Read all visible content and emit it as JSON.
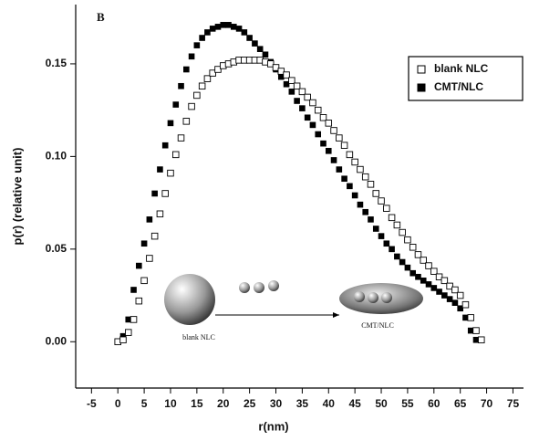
{
  "chart_data": {
    "type": "scatter",
    "panel_label": "B",
    "x_label": "r(nm)",
    "y_label": "p(r) (relative unit)",
    "xlim": [
      -8,
      77
    ],
    "ylim": [
      -0.025,
      0.182
    ],
    "xticks": [
      -5,
      0,
      5,
      10,
      15,
      20,
      25,
      30,
      35,
      40,
      45,
      50,
      55,
      60,
      65,
      70,
      75
    ],
    "yticks": [
      {
        "value": 0,
        "label": "0.00"
      },
      {
        "value": 0.05,
        "label": "0.05"
      },
      {
        "value": 0.1,
        "label": "0.10"
      },
      {
        "value": 0.15,
        "label": "0.15"
      }
    ],
    "legend": "upper right",
    "annotations": [
      "blank NLC",
      "CMT/NLC"
    ],
    "series": [
      {
        "name": "CMT/NLC",
        "color": "#000000",
        "marker": "filled-square",
        "x": [
          0,
          1,
          2,
          3,
          4,
          5,
          6,
          7,
          8,
          9,
          10,
          11,
          12,
          13,
          14,
          15,
          16,
          17,
          18,
          19,
          20,
          21,
          22,
          23,
          24,
          25,
          26,
          27,
          28,
          29,
          30,
          31,
          32,
          33,
          34,
          35,
          36,
          37,
          38,
          39,
          40,
          41,
          42,
          43,
          44,
          45,
          46,
          47,
          48,
          49,
          50,
          51,
          52,
          53,
          54,
          55,
          56,
          57,
          58,
          59,
          60,
          61,
          62,
          63,
          64,
          65,
          66,
          67,
          68
        ],
        "values": [
          0,
          0.003,
          0.012,
          0.028,
          0.041,
          0.053,
          0.066,
          0.08,
          0.093,
          0.106,
          0.118,
          0.128,
          0.138,
          0.147,
          0.154,
          0.16,
          0.164,
          0.167,
          0.169,
          0.17,
          0.171,
          0.171,
          0.17,
          0.169,
          0.167,
          0.164,
          0.161,
          0.158,
          0.155,
          0.151,
          0.147,
          0.143,
          0.139,
          0.135,
          0.13,
          0.126,
          0.121,
          0.117,
          0.112,
          0.107,
          0.103,
          0.098,
          0.093,
          0.088,
          0.084,
          0.079,
          0.074,
          0.07,
          0.066,
          0.061,
          0.057,
          0.053,
          0.05,
          0.046,
          0.043,
          0.04,
          0.037,
          0.035,
          0.033,
          0.031,
          0.029,
          0.027,
          0.025,
          0.023,
          0.021,
          0.018,
          0.013,
          0.006,
          0.001
        ]
      },
      {
        "name": "blank NLC",
        "color": "#000000",
        "marker": "open-square",
        "x": [
          0,
          1,
          2,
          3,
          4,
          5,
          6,
          7,
          8,
          9,
          10,
          11,
          12,
          13,
          14,
          15,
          16,
          17,
          18,
          19,
          20,
          21,
          22,
          23,
          24,
          25,
          26,
          27,
          28,
          29,
          30,
          31,
          32,
          33,
          34,
          35,
          36,
          37,
          38,
          39,
          40,
          41,
          42,
          43,
          44,
          45,
          46,
          47,
          48,
          49,
          50,
          51,
          52,
          53,
          54,
          55,
          56,
          57,
          58,
          59,
          60,
          61,
          62,
          63,
          64,
          65,
          66,
          67,
          68,
          69
        ],
        "values": [
          0,
          0.001,
          0.005,
          0.012,
          0.022,
          0.033,
          0.045,
          0.057,
          0.069,
          0.08,
          0.091,
          0.101,
          0.11,
          0.119,
          0.127,
          0.133,
          0.138,
          0.142,
          0.145,
          0.147,
          0.149,
          0.15,
          0.151,
          0.152,
          0.152,
          0.152,
          0.152,
          0.152,
          0.151,
          0.15,
          0.148,
          0.146,
          0.144,
          0.141,
          0.138,
          0.135,
          0.132,
          0.129,
          0.125,
          0.121,
          0.118,
          0.114,
          0.11,
          0.106,
          0.101,
          0.097,
          0.093,
          0.089,
          0.085,
          0.08,
          0.076,
          0.072,
          0.067,
          0.063,
          0.059,
          0.055,
          0.051,
          0.047,
          0.044,
          0.041,
          0.038,
          0.035,
          0.033,
          0.03,
          0.028,
          0.025,
          0.02,
          0.013,
          0.006,
          0.001
        ]
      }
    ]
  }
}
